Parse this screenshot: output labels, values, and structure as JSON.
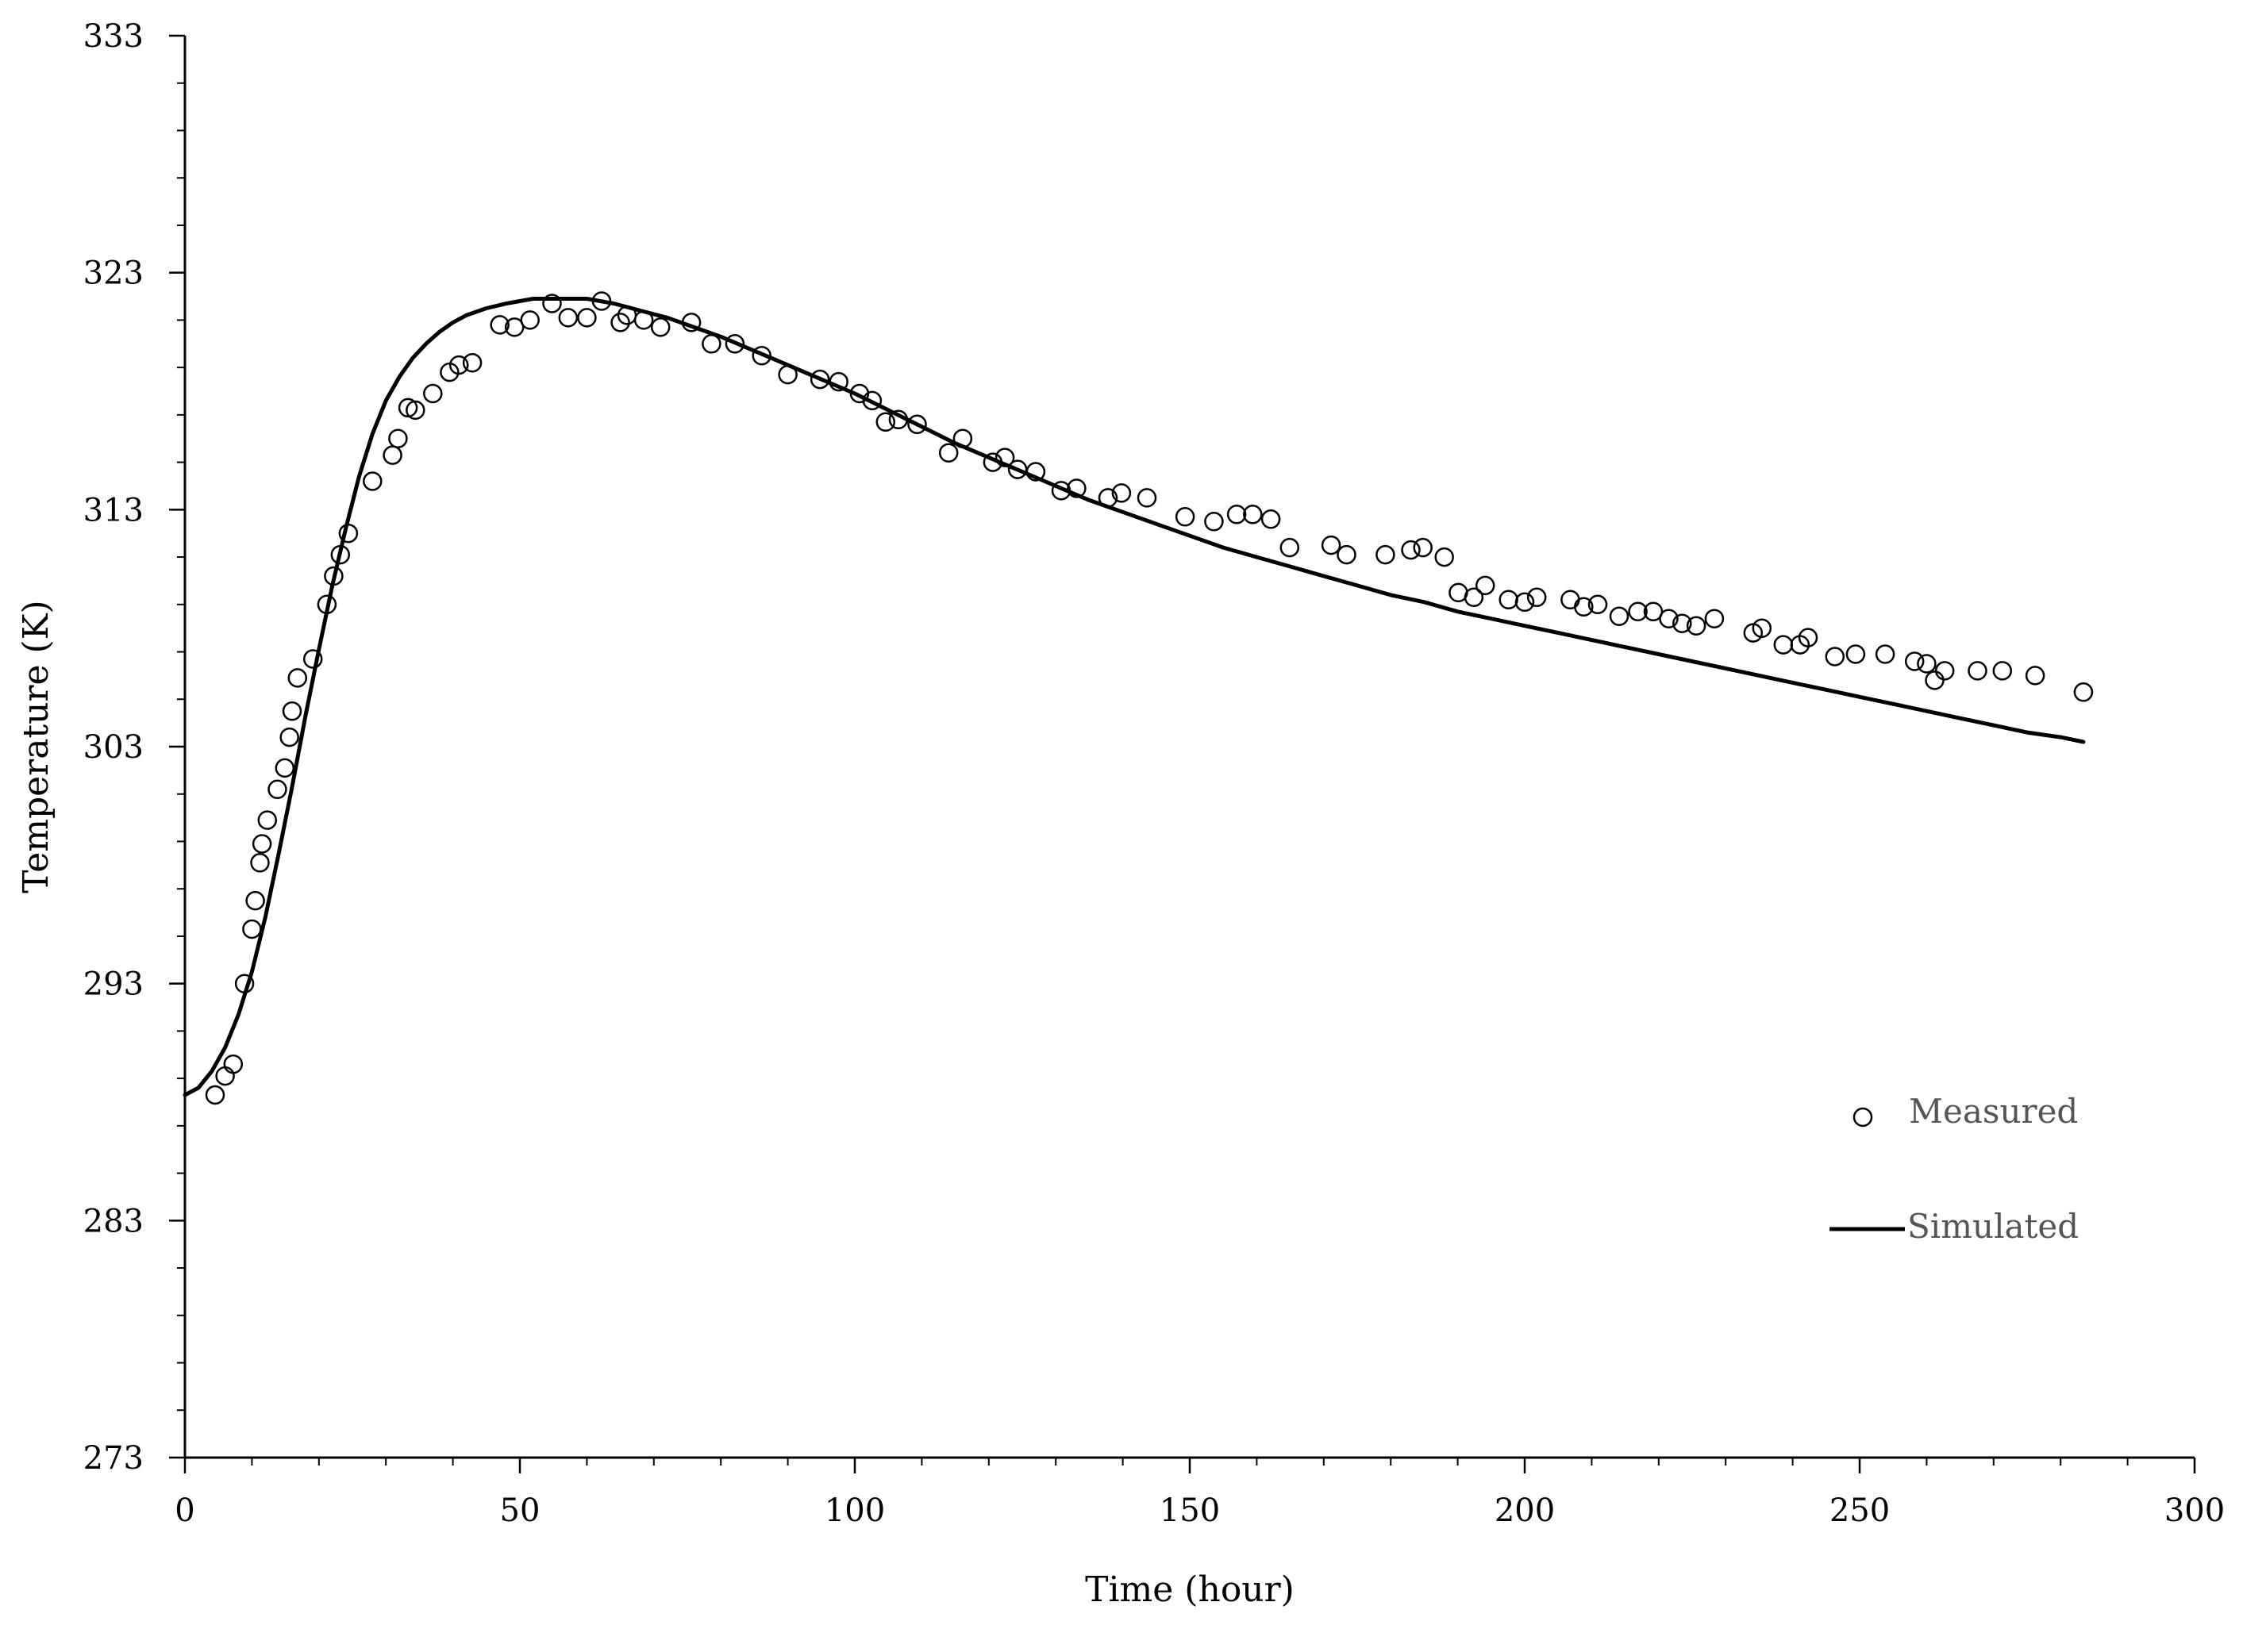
{
  "chart_data": {
    "type": "scatter",
    "title": "",
    "xlabel": "Time (hour)",
    "ylabel": "Temperature (K)",
    "xlim": [
      0,
      300
    ],
    "ylim": [
      273,
      333
    ],
    "x_ticks": [
      0,
      50,
      100,
      150,
      200,
      250,
      300
    ],
    "y_ticks": [
      273,
      283,
      293,
      303,
      313,
      323,
      333
    ],
    "x_tick_labels": [
      "0",
      "50",
      "100",
      "150",
      "200",
      "250",
      "300"
    ],
    "y_tick_labels": [
      "273",
      "283",
      "293",
      "303",
      "313",
      "323",
      "333"
    ],
    "x_minor_step": 10,
    "y_minor_step": 2,
    "grid": false,
    "legend_position": "bottom-right",
    "series": [
      {
        "name": "Measured",
        "kind": "markers",
        "marker": "open-circle",
        "color": "#000000",
        "points": [
          [
            4.5,
            288.3
          ],
          [
            6,
            289.1
          ],
          [
            7.2,
            289.6
          ],
          [
            8.9,
            293.0
          ],
          [
            10,
            295.3
          ],
          [
            10.5,
            296.5
          ],
          [
            11.2,
            298.1
          ],
          [
            11.5,
            298.9
          ],
          [
            12.3,
            299.9
          ],
          [
            13.8,
            301.2
          ],
          [
            14.9,
            302.1
          ],
          [
            15.6,
            303.4
          ],
          [
            16,
            304.5
          ],
          [
            16.8,
            305.9
          ],
          [
            19.1,
            306.7
          ],
          [
            21.2,
            309.0
          ],
          [
            22.2,
            310.2
          ],
          [
            23.2,
            311.1
          ],
          [
            24.4,
            312.0
          ],
          [
            28,
            314.2
          ],
          [
            31,
            315.3
          ],
          [
            31.8,
            316.0
          ],
          [
            33.3,
            317.3
          ],
          [
            34.4,
            317.2
          ],
          [
            37,
            317.9
          ],
          [
            39.5,
            318.8
          ],
          [
            40.9,
            319.1
          ],
          [
            42.9,
            319.2
          ],
          [
            47,
            320.8
          ],
          [
            49.2,
            320.7
          ],
          [
            51.5,
            321.0
          ],
          [
            54.8,
            321.7
          ],
          [
            57.2,
            321.1
          ],
          [
            60,
            321.1
          ],
          [
            62.2,
            321.8
          ],
          [
            65,
            320.9
          ],
          [
            66,
            321.2
          ],
          [
            68.5,
            321.0
          ],
          [
            71,
            320.7
          ],
          [
            75.6,
            320.9
          ],
          [
            78.6,
            320.0
          ],
          [
            82.1,
            320.0
          ],
          [
            86.1,
            319.5
          ],
          [
            90,
            318.7
          ],
          [
            94.8,
            318.5
          ],
          [
            97.6,
            318.4
          ],
          [
            100.7,
            317.9
          ],
          [
            102.6,
            317.6
          ],
          [
            104.6,
            316.7
          ],
          [
            106.5,
            316.8
          ],
          [
            109.3,
            316.6
          ],
          [
            114,
            315.4
          ],
          [
            116.1,
            316.0
          ],
          [
            120.6,
            315.0
          ],
          [
            122.4,
            315.2
          ],
          [
            124.3,
            314.7
          ],
          [
            127,
            314.6
          ],
          [
            130.8,
            313.8
          ],
          [
            133.1,
            313.9
          ],
          [
            137.8,
            313.5
          ],
          [
            139.8,
            313.7
          ],
          [
            143.6,
            313.5
          ],
          [
            149.3,
            312.7
          ],
          [
            153.6,
            312.5
          ],
          [
            157,
            312.8
          ],
          [
            159.4,
            312.8
          ],
          [
            162.1,
            312.6
          ],
          [
            164.9,
            311.4
          ],
          [
            171.1,
            311.5
          ],
          [
            173.4,
            311.1
          ],
          [
            179.2,
            311.1
          ],
          [
            183,
            311.3
          ],
          [
            184.8,
            311.4
          ],
          [
            188,
            311.0
          ],
          [
            190.1,
            309.5
          ],
          [
            192.4,
            309.3
          ],
          [
            194.1,
            309.8
          ],
          [
            197.6,
            309.2
          ],
          [
            200,
            309.1
          ],
          [
            201.8,
            309.3
          ],
          [
            206.8,
            309.2
          ],
          [
            208.8,
            308.9
          ],
          [
            210.9,
            309.0
          ],
          [
            214.1,
            308.5
          ],
          [
            216.9,
            308.7
          ],
          [
            219.2,
            308.7
          ],
          [
            221.5,
            308.4
          ],
          [
            223.5,
            308.2
          ],
          [
            225.6,
            308.1
          ],
          [
            228.3,
            308.4
          ],
          [
            234.1,
            307.8
          ],
          [
            235.4,
            308.0
          ],
          [
            238.6,
            307.3
          ],
          [
            241.1,
            307.3
          ],
          [
            242.3,
            307.6
          ],
          [
            246.3,
            306.8
          ],
          [
            249.4,
            306.9
          ],
          [
            253.8,
            306.9
          ],
          [
            258.2,
            306.6
          ],
          [
            260,
            306.5
          ],
          [
            261.2,
            305.8
          ],
          [
            262.7,
            306.2
          ],
          [
            267.6,
            306.2
          ],
          [
            271.3,
            306.2
          ],
          [
            276.2,
            306.0
          ],
          [
            283.4,
            305.3
          ]
        ]
      },
      {
        "name": "Simulated",
        "kind": "line",
        "color": "#000000",
        "points": [
          [
            0,
            288.3
          ],
          [
            2,
            288.6
          ],
          [
            4,
            289.3
          ],
          [
            6,
            290.3
          ],
          [
            8,
            291.7
          ],
          [
            10,
            293.5
          ],
          [
            12,
            295.8
          ],
          [
            14,
            298.5
          ],
          [
            16,
            301.3
          ],
          [
            18,
            304.3
          ],
          [
            20,
            307.1
          ],
          [
            22,
            309.8
          ],
          [
            24,
            312.2
          ],
          [
            26,
            314.4
          ],
          [
            28,
            316.2
          ],
          [
            30,
            317.6
          ],
          [
            32,
            318.6
          ],
          [
            34,
            319.4
          ],
          [
            36,
            320.0
          ],
          [
            38,
            320.5
          ],
          [
            40,
            320.9
          ],
          [
            42,
            321.2
          ],
          [
            45,
            321.5
          ],
          [
            48,
            321.7
          ],
          [
            52,
            321.9
          ],
          [
            56,
            321.9
          ],
          [
            60,
            321.9
          ],
          [
            64,
            321.7
          ],
          [
            68,
            321.4
          ],
          [
            72,
            321.1
          ],
          [
            76,
            320.7
          ],
          [
            80,
            320.3
          ],
          [
            85,
            319.7
          ],
          [
            90,
            319.1
          ],
          [
            95,
            318.5
          ],
          [
            100,
            317.9
          ],
          [
            105,
            317.2
          ],
          [
            110,
            316.5
          ],
          [
            115,
            315.8
          ],
          [
            120,
            315.2
          ],
          [
            125,
            314.6
          ],
          [
            130,
            314.0
          ],
          [
            135,
            313.4
          ],
          [
            140,
            312.9
          ],
          [
            145,
            312.4
          ],
          [
            150,
            311.9
          ],
          [
            155,
            311.4
          ],
          [
            160,
            311.0
          ],
          [
            165,
            310.6
          ],
          [
            170,
            310.2
          ],
          [
            175,
            309.8
          ],
          [
            180,
            309.4
          ],
          [
            185,
            309.1
          ],
          [
            190,
            308.7
          ],
          [
            195,
            308.4
          ],
          [
            200,
            308.1
          ],
          [
            205,
            307.8
          ],
          [
            210,
            307.5
          ],
          [
            215,
            307.2
          ],
          [
            220,
            306.9
          ],
          [
            225,
            306.6
          ],
          [
            230,
            306.3
          ],
          [
            235,
            306.0
          ],
          [
            240,
            305.7
          ],
          [
            245,
            305.4
          ],
          [
            250,
            305.1
          ],
          [
            255,
            304.8
          ],
          [
            260,
            304.5
          ],
          [
            265,
            304.2
          ],
          [
            270,
            303.9
          ],
          [
            275,
            303.6
          ],
          [
            280,
            303.4
          ],
          [
            283.4,
            303.2
          ]
        ]
      }
    ]
  },
  "legend": {
    "items": [
      {
        "key": "measured",
        "label": "Measured"
      },
      {
        "key": "simulated",
        "label": "Simulated"
      }
    ]
  }
}
